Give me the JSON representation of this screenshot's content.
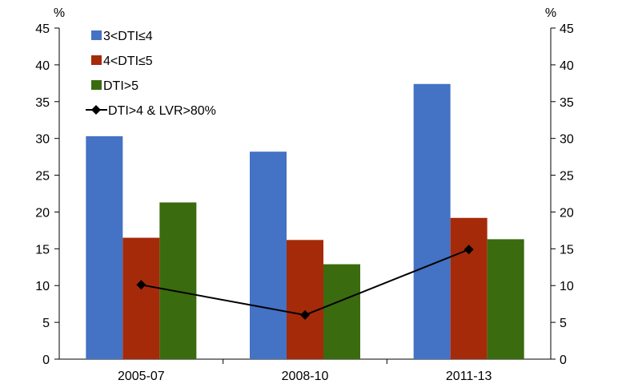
{
  "chart_data": {
    "type": "bar",
    "categories": [
      "2005-07",
      "2008-10",
      "2011-13"
    ],
    "series": [
      {
        "name": "3<DTI≤4",
        "type": "bar",
        "color": "#4472C4",
        "values": [
          30.3,
          28.2,
          37.4
        ]
      },
      {
        "name": "4<DTI≤5",
        "type": "bar",
        "color": "#A52A0A",
        "values": [
          16.5,
          16.2,
          19.2
        ]
      },
      {
        "name": "DTI>5",
        "type": "bar",
        "color": "#3A6B0F",
        "values": [
          21.3,
          12.9,
          16.3
        ]
      },
      {
        "name": "DTI>4 & LVR>80%",
        "type": "line",
        "color": "#000000",
        "marker": "diamond",
        "values": [
          10.1,
          6.0,
          14.9
        ]
      }
    ],
    "y_unit_left": "%",
    "y_unit_right": "%",
    "ylim": [
      0,
      45
    ],
    "yticks": [
      "0",
      "5",
      "10",
      "15",
      "20",
      "25",
      "30",
      "35",
      "40",
      "45"
    ],
    "grid": false,
    "legend_position": "top-left"
  }
}
